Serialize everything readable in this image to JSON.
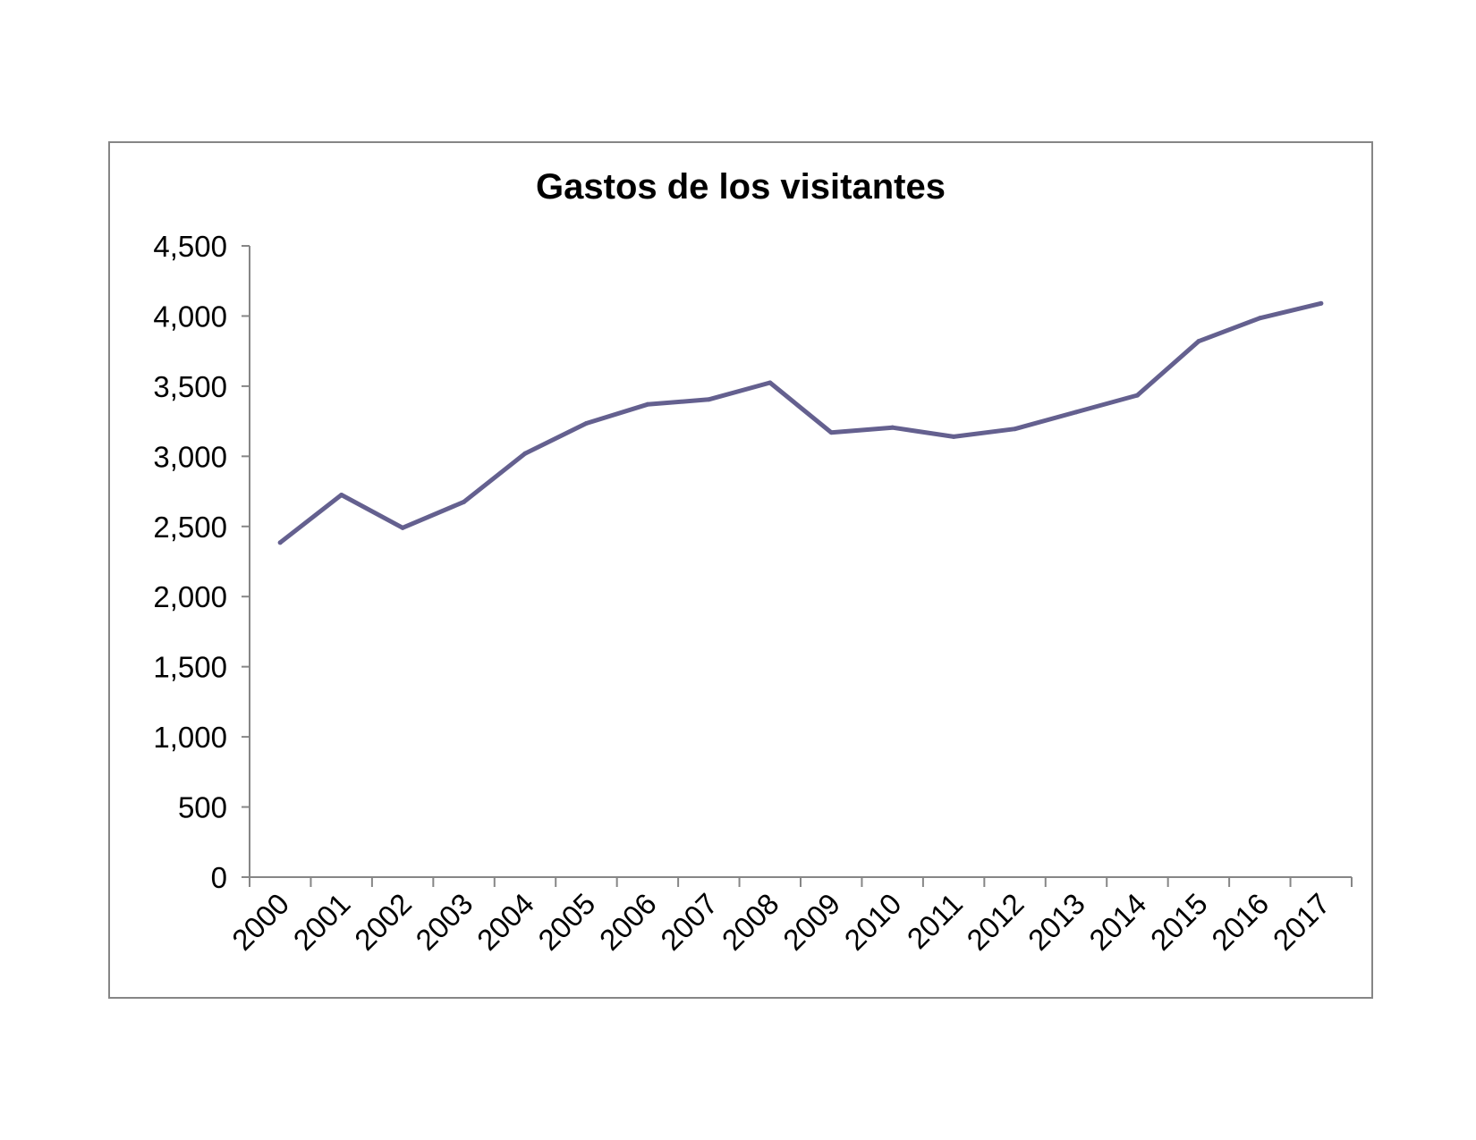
{
  "chart_data": {
    "type": "line",
    "title": "Gastos de los visitantes",
    "xlabel": "",
    "ylabel": "",
    "categories": [
      "2000",
      "2001",
      "2002",
      "2003",
      "2004",
      "2005",
      "2006",
      "2007",
      "2008",
      "2009",
      "2010",
      "2011",
      "2012",
      "2013",
      "2014",
      "2015",
      "2016",
      "2017"
    ],
    "series": [
      {
        "values": [
          2385,
          2725,
          2490,
          2675,
          3020,
          3235,
          3370,
          3405,
          3525,
          3170,
          3205,
          3140,
          3195,
          3315,
          3435,
          3820,
          3985,
          4090
        ]
      }
    ],
    "ylim": [
      0,
      4500
    ],
    "yticks": [
      "0",
      "500",
      "1,000",
      "1,500",
      "2,000",
      "2,500",
      "3,000",
      "3,500",
      "4,000",
      "4,500"
    ],
    "ytick_values": [
      0,
      500,
      1000,
      1500,
      2000,
      2500,
      3000,
      3500,
      4000,
      4500
    ],
    "grid": false,
    "legend": "none",
    "line_color": "#64608f",
    "axis_color": "#868686",
    "border_color": "#868686"
  }
}
